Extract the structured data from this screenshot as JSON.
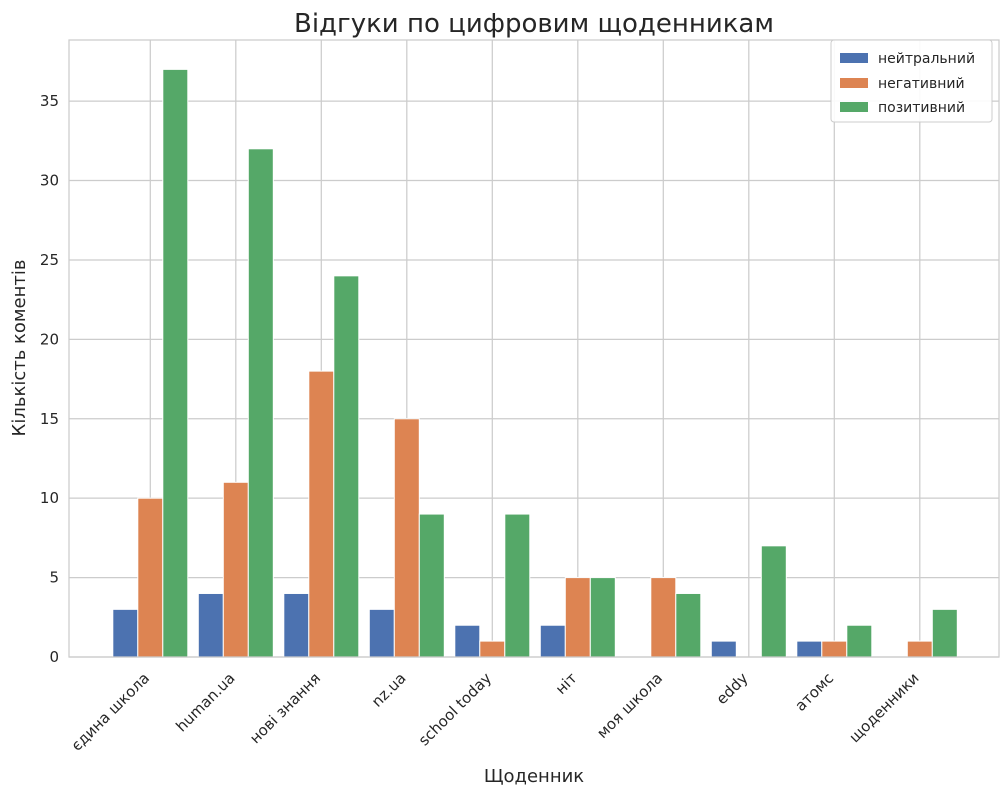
{
  "chart_data": {
    "type": "bar",
    "title": "Відгуки по цифровим щоденникам",
    "xlabel": "Щоденник",
    "ylabel": "Кількість коментів",
    "categories": [
      "єдина школа",
      "human.ua",
      "нові знання",
      "nz.ua",
      "school today",
      "ніт",
      "моя школа",
      "eddy",
      "атомс",
      "щоденники"
    ],
    "series": [
      {
        "name": "нейтральний",
        "color": "#4c72b0",
        "values": [
          3,
          4,
          4,
          3,
          2,
          2,
          0,
          1,
          1,
          0
        ]
      },
      {
        "name": "негативний",
        "color": "#dd8452",
        "values": [
          10,
          11,
          18,
          15,
          1,
          5,
          5,
          0,
          1,
          1
        ]
      },
      {
        "name": "позитивний",
        "color": "#55a868",
        "values": [
          37,
          32,
          24,
          9,
          9,
          5,
          4,
          7,
          2,
          3
        ]
      }
    ],
    "ylim": [
      0,
      38.85
    ],
    "yticks": [
      0,
      5,
      10,
      15,
      20,
      25,
      30,
      35
    ],
    "grid": true,
    "legend_position": "top-right"
  }
}
